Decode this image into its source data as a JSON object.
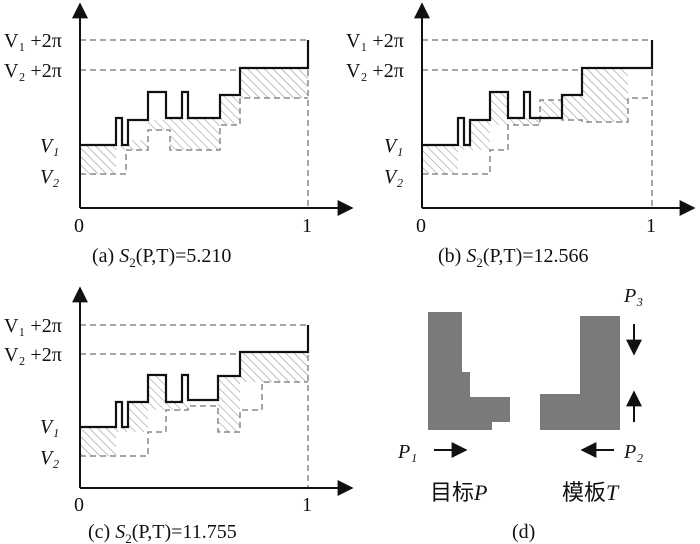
{
  "panels": [
    {
      "id": "a",
      "caption_prefix": "(a) ",
      "caption_S": "S",
      "caption_sub": "2",
      "caption_args": "(P,T)",
      "caption_value": "=5.210",
      "labels": {
        "v1_2pi": "V₁ +2π",
        "v2_2pi": "V₂ +2π",
        "v1": "V₁",
        "v2": "V₂",
        "x0": "0",
        "x1": "1"
      }
    },
    {
      "id": "b",
      "caption_prefix": "(b) ",
      "caption_S": "S",
      "caption_sub": "2",
      "caption_args": "(P,T)",
      "caption_value": "=12.566",
      "labels": {
        "v1_2pi": "V₁ +2π",
        "v2_2pi": "V₂ +2π",
        "v1": "V₁",
        "v2": "V₂",
        "x0": "0",
        "x1": "1"
      }
    },
    {
      "id": "c",
      "caption_prefix": "(c) ",
      "caption_S": "S",
      "caption_sub": "2",
      "caption_args": "(P,T)",
      "caption_value": "=11.755",
      "labels": {
        "v1_2pi": "V₁ +2π",
        "v2_2pi": "V₂ +2π",
        "v1": "V₁",
        "v2": "V₂",
        "x0": "0",
        "x1": "1"
      }
    }
  ],
  "panel_d": {
    "caption": "(d)",
    "p1": "P₁",
    "p2": "P₂",
    "p3": "P₃",
    "target_label": "目标",
    "target_var": "P",
    "template_label": "模板",
    "template_var": "T"
  },
  "colors": {
    "solid": "#111111",
    "dashed": "#8a8a8a",
    "hatch": "#9a9a9a",
    "shape": "#7a7a7a"
  }
}
